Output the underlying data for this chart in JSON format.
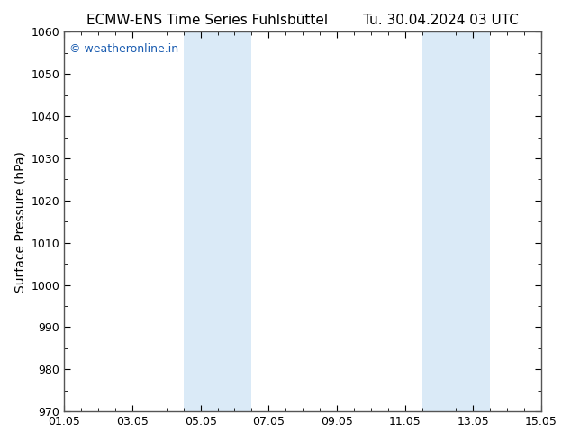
{
  "title_left": "ECMW-ENS Time Series Fuhlsbüttel",
  "title_right": "Tu. 30.04.2024 03 UTC",
  "ylabel": "Surface Pressure (hPa)",
  "ylim": [
    970,
    1060
  ],
  "yticks": [
    970,
    980,
    990,
    1000,
    1010,
    1020,
    1030,
    1040,
    1050,
    1060
  ],
  "xlim_start": 0,
  "xlim_end": 14,
  "xtick_positions": [
    0,
    2,
    4,
    6,
    8,
    10,
    12,
    14
  ],
  "xtick_labels": [
    "01.05",
    "03.05",
    "05.05",
    "07.05",
    "09.05",
    "11.05",
    "13.05",
    "15.05"
  ],
  "shaded_bands": [
    {
      "x_start": 3.5,
      "x_end": 5.5
    },
    {
      "x_start": 10.5,
      "x_end": 12.5
    }
  ],
  "shade_color": "#daeaf7",
  "background_color": "#ffffff",
  "plot_bg_color": "#ffffff",
  "watermark_text": "© weatheronline.in",
  "watermark_color": "#1a5cb0",
  "title_fontsize": 11,
  "tick_fontsize": 9,
  "ylabel_fontsize": 10,
  "watermark_fontsize": 9,
  "spine_color": "#555555",
  "minor_tick_count": 4
}
